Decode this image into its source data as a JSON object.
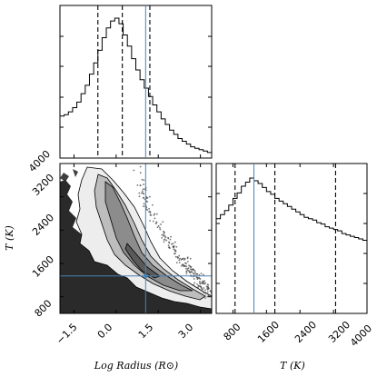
{
  "chart_data": [
    {
      "type": "histogram",
      "panel": "marginal-log-radius",
      "variable": "log_radius",
      "xlim": [
        -2.0,
        3.4
      ],
      "bins": [
        -2.0,
        -1.85,
        -1.7,
        -1.55,
        -1.4,
        -1.25,
        -1.1,
        -0.95,
        -0.8,
        -0.65,
        -0.5,
        -0.35,
        -0.2,
        -0.05,
        0.1,
        0.25,
        0.4,
        0.55,
        0.7,
        0.85,
        1.0,
        1.15,
        1.3,
        1.45,
        1.6,
        1.75,
        1.9,
        2.05,
        2.2,
        2.35,
        2.5,
        2.65,
        2.8,
        2.95,
        3.1,
        3.25,
        3.4
      ],
      "counts": [
        0.3,
        0.31,
        0.33,
        0.36,
        0.4,
        0.46,
        0.52,
        0.6,
        0.68,
        0.77,
        0.86,
        0.93,
        0.98,
        1.0,
        0.96,
        0.88,
        0.8,
        0.71,
        0.63,
        0.56,
        0.5,
        0.44,
        0.38,
        0.33,
        0.28,
        0.24,
        0.2,
        0.17,
        0.14,
        0.12,
        0.1,
        0.08,
        0.07,
        0.06,
        0.05,
        0.04
      ],
      "quantiles": [
        -0.65,
        0.22,
        1.2
      ],
      "truth": 1.05
    },
    {
      "type": "contour",
      "panel": "joint-log-radius-T",
      "x_variable": "log_radius",
      "y_variable": "T",
      "xlim": [
        -2.0,
        3.4
      ],
      "ylim": [
        400,
        4000
      ],
      "peak": {
        "x": 1.2,
        "y": 1300
      },
      "levels": [
        0.39,
        0.86,
        0.99
      ],
      "truth": {
        "x": 1.05,
        "y": 1300
      }
    },
    {
      "type": "histogram",
      "panel": "marginal-T",
      "variable": "T",
      "xlim": [
        400,
        4000
      ],
      "bins": [
        400,
        500,
        600,
        700,
        800,
        900,
        1000,
        1100,
        1200,
        1300,
        1400,
        1500,
        1600,
        1700,
        1800,
        1900,
        2000,
        2100,
        2200,
        2300,
        2400,
        2500,
        2600,
        2700,
        2800,
        2900,
        3000,
        3100,
        3200,
        3300,
        3400,
        3500,
        3600,
        3700,
        3800,
        3900,
        4000
      ],
      "counts": [
        0.7,
        0.73,
        0.76,
        0.8,
        0.85,
        0.89,
        0.94,
        0.97,
        1.0,
        0.98,
        0.96,
        0.93,
        0.9,
        0.88,
        0.85,
        0.83,
        0.81,
        0.79,
        0.77,
        0.75,
        0.73,
        0.71,
        0.7,
        0.69,
        0.67,
        0.66,
        0.64,
        0.63,
        0.62,
        0.61,
        0.59,
        0.58,
        0.57,
        0.56,
        0.55,
        0.54
      ],
      "quantiles": [
        850,
        1800,
        3250
      ],
      "truth": 1300
    }
  ],
  "axes": {
    "x_label_left": "Log Radius (R⊙)",
    "x_label_right": "T (K)",
    "y_label": "T (K)",
    "x_ticks_radius": [
      "−1.5",
      "0.0",
      "1.5",
      "3.0"
    ],
    "x_ticks_T": [
      "800",
      "1600",
      "2400",
      "3200",
      "4000"
    ],
    "y_ticks_T": [
      "800",
      "1600",
      "2400",
      "3200",
      "4000"
    ]
  },
  "colors": {
    "truth_line": "#4682b4",
    "contour_fill_light": "#f2f2f2",
    "contour_fill_dark": "#222222"
  }
}
